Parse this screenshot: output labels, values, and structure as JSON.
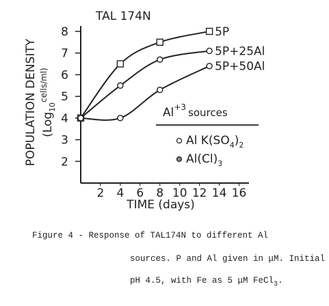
{
  "chart_data": {
    "type": "line",
    "title": "TAL 174N",
    "y_label": "POPULATION DENSITY",
    "y_label_2": [
      "(Log",
      "10",
      "cells/ml)"
    ],
    "x_label": "TIME (days)",
    "x": [
      0,
      4,
      8,
      13
    ],
    "series": [
      {
        "name": "5P",
        "color": "#222",
        "marker": "square",
        "values": [
          4,
          6.5,
          7.5,
          8
        ]
      },
      {
        "name": "5P+25Al",
        "color": "#222",
        "marker": "circle",
        "values": [
          4,
          5.5,
          6.7,
          7.1
        ]
      },
      {
        "name": "5P+50Al",
        "color": "#222",
        "marker": "circle",
        "values": [
          4,
          4,
          5.3,
          6.4
        ]
      }
    ],
    "xlim": [
      0,
      17
    ],
    "xticks": [
      2,
      4,
      6,
      8,
      10,
      12,
      14,
      16
    ],
    "ylim": [
      1,
      8.25
    ],
    "yticks": [
      2,
      3,
      4,
      5,
      6,
      7,
      8
    ],
    "legend_title": [
      "Al",
      "+3",
      "sources"
    ],
    "legend_items": [
      [
        "Al K(SO",
        "4",
        ")",
        "2"
      ],
      [
        "Al(Cl)",
        "3"
      ]
    ],
    "caption": [
      [
        "Figure 4 - Response of TAL174N to different Al"
      ],
      [
        "sources.  P and Al given in μM.  Initial"
      ],
      [
        "pH 4.5, with Fe as 5 μM FeCl",
        "3",
        "."
      ]
    ]
  }
}
